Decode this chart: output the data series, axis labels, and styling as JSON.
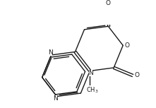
{
  "bg_color": "#ffffff",
  "line_color": "#1a1a1a",
  "line_width": 1.0,
  "font_size": 6.5,
  "figsize": [
    2.21,
    1.53
  ],
  "dpi": 100,
  "xlim": [
    0,
    221
  ],
  "ylim": [
    0,
    153
  ]
}
